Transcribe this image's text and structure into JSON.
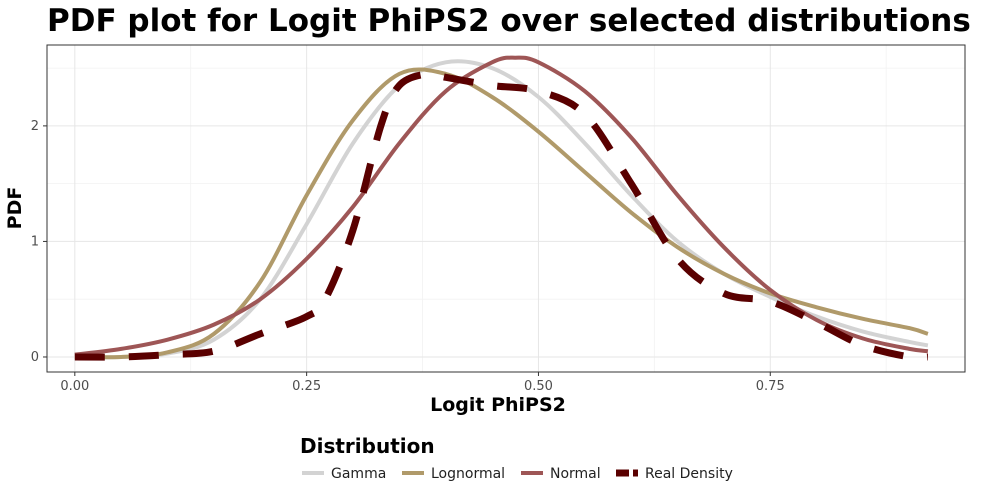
{
  "chart_data": {
    "type": "line",
    "title": "PDF plot for Logit PhiPS2 over selected distributions",
    "xlabel": "Logit PhiPS2",
    "ylabel": "PDF",
    "xlim": [
      -0.03,
      0.96
    ],
    "ylim": [
      -0.13,
      2.7
    ],
    "x_ticks": [
      0.0,
      0.25,
      0.5,
      0.75
    ],
    "x_tick_labels": [
      "0.00",
      "0.25",
      "0.50",
      "0.75"
    ],
    "y_ticks": [
      0,
      1,
      2
    ],
    "y_tick_labels": [
      "0",
      "1",
      "2"
    ],
    "grid": true,
    "legend": {
      "title": "Distribution",
      "position": "bottom"
    },
    "series": [
      {
        "name": "Gamma",
        "color": "#d3d3d3",
        "dash": "solid",
        "x": [
          0.0,
          0.05,
          0.1,
          0.15,
          0.2,
          0.25,
          0.3,
          0.35,
          0.4,
          0.45,
          0.5,
          0.55,
          0.6,
          0.65,
          0.7,
          0.75,
          0.8,
          0.85,
          0.9,
          0.92
        ],
        "y": [
          0.0,
          0.0,
          0.03,
          0.15,
          0.5,
          1.15,
          1.85,
          2.35,
          2.55,
          2.5,
          2.25,
          1.85,
          1.4,
          1.0,
          0.72,
          0.52,
          0.35,
          0.22,
          0.13,
          0.1
        ]
      },
      {
        "name": "Lognormal",
        "color": "#b09a6a",
        "dash": "solid",
        "x": [
          0.0,
          0.05,
          0.1,
          0.15,
          0.2,
          0.25,
          0.3,
          0.35,
          0.4,
          0.45,
          0.5,
          0.55,
          0.6,
          0.65,
          0.7,
          0.75,
          0.8,
          0.85,
          0.9,
          0.92
        ],
        "y": [
          0.0,
          0.0,
          0.04,
          0.2,
          0.65,
          1.4,
          2.05,
          2.45,
          2.45,
          2.25,
          1.95,
          1.6,
          1.25,
          0.95,
          0.72,
          0.55,
          0.43,
          0.33,
          0.25,
          0.2
        ]
      },
      {
        "name": "Normal",
        "color": "#9e5656",
        "dash": "solid",
        "x": [
          0.0,
          0.05,
          0.1,
          0.15,
          0.2,
          0.25,
          0.3,
          0.35,
          0.4,
          0.45,
          0.475,
          0.5,
          0.55,
          0.6,
          0.65,
          0.7,
          0.75,
          0.8,
          0.85,
          0.9,
          0.92
        ],
        "y": [
          0.02,
          0.07,
          0.15,
          0.28,
          0.5,
          0.85,
          1.3,
          1.85,
          2.3,
          2.55,
          2.59,
          2.55,
          2.3,
          1.9,
          1.4,
          0.95,
          0.58,
          0.32,
          0.16,
          0.07,
          0.05
        ]
      },
      {
        "name": "Real Density",
        "color": "#5a0000",
        "dash": "dashed",
        "x": [
          0.0,
          0.05,
          0.1,
          0.15,
          0.2,
          0.25,
          0.27,
          0.3,
          0.33,
          0.35,
          0.38,
          0.4,
          0.45,
          0.5,
          0.55,
          0.6,
          0.65,
          0.7,
          0.75,
          0.8,
          0.85,
          0.9,
          0.92
        ],
        "y": [
          0.0,
          0.0,
          0.02,
          0.05,
          0.2,
          0.35,
          0.5,
          1.1,
          2.0,
          2.35,
          2.45,
          2.42,
          2.35,
          2.3,
          2.1,
          1.5,
          0.85,
          0.55,
          0.48,
          0.3,
          0.1,
          0.0,
          0.0
        ]
      }
    ]
  }
}
